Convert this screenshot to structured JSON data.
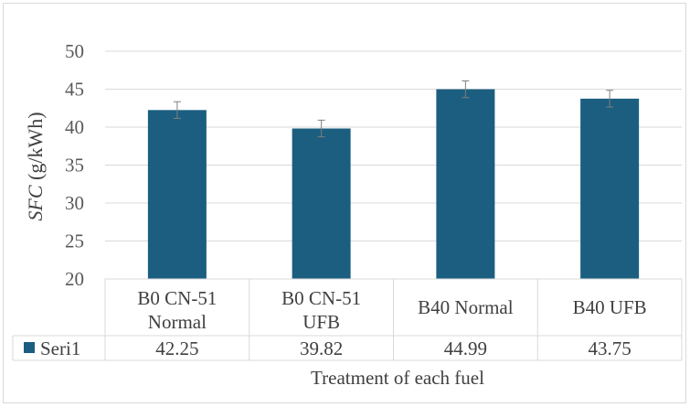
{
  "chart_data": {
    "type": "bar",
    "categories": [
      [
        "B0 CN-51",
        "Normal"
      ],
      [
        "B0 CN-51",
        "UFB"
      ],
      [
        "B40 Normal"
      ],
      [
        "B40 UFB"
      ]
    ],
    "series": [
      {
        "name": "Seri1",
        "values": [
          42.25,
          39.82,
          44.99,
          43.75
        ],
        "error": [
          1.1,
          1.1,
          1.1,
          1.1
        ],
        "color": "#1b5e80"
      }
    ],
    "value_labels": [
      "42.25",
      "39.82",
      "44.99",
      "43.75"
    ],
    "ylabel_italic": "SFC",
    "ylabel_rest": " (g/kWh)",
    "xlabel": "Treatment of each fuel",
    "ylim": [
      20,
      50
    ],
    "yticks": [
      20,
      25,
      30,
      35,
      40,
      45,
      50
    ],
    "grid": true,
    "data_table": true,
    "colors": {
      "bar": "#1b5e80",
      "grid": "#d9d9d9",
      "error": "#7f7f7f",
      "text": "#404040"
    }
  }
}
